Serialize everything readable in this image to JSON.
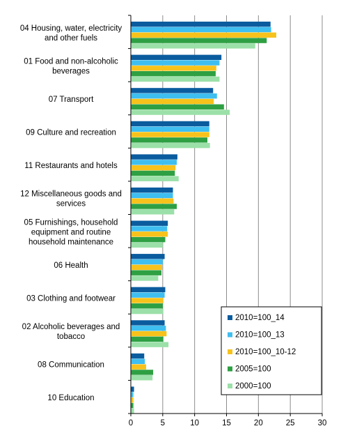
{
  "chart_data": {
    "type": "bar",
    "orientation": "horizontal",
    "categories": [
      "04 Housing, water, electricity and other fuels",
      "01 Food and non-alcoholic beverages",
      "07 Transport",
      "09 Culture and recreation",
      "11 Restaurants and hotels",
      "12 Miscellaneous goods and services",
      "05 Furnishings, household equipment and routine household maintenance",
      "06 Health",
      "03 Clothing and footwear",
      "02 Alcoholic beverages and tobacco",
      "08 Communication",
      "10 Education"
    ],
    "category_lines": [
      [
        "04 Housing, water, electricity",
        "and other fuels"
      ],
      [
        "01 Food and non-alcoholic",
        "beverages"
      ],
      [
        "07 Transport"
      ],
      [
        "09 Culture and recreation"
      ],
      [
        "11 Restaurants and hotels"
      ],
      [
        "12 Miscellaneous goods and",
        "services"
      ],
      [
        "05  Furnishings, household",
        "equipment and routine",
        "household maintenance"
      ],
      [
        "06 Health"
      ],
      [
        "03 Clothing and footwear"
      ],
      [
        "02 Alcoholic beverages and",
        "tobacco"
      ],
      [
        "08 Communication"
      ],
      [
        "10 Education"
      ]
    ],
    "series": [
      {
        "name": "2010=100_14",
        "color": "#0a5c9e",
        "values": [
          21.9,
          14.2,
          12.9,
          12.3,
          7.3,
          6.6,
          5.8,
          5.3,
          5.4,
          5.3,
          2.1,
          0.5
        ]
      },
      {
        "name": "2010=100_13",
        "color": "#3fbef0",
        "values": [
          22.0,
          13.9,
          13.5,
          12.3,
          7.2,
          6.6,
          5.7,
          5.0,
          5.3,
          5.5,
          2.2,
          0.4
        ]
      },
      {
        "name": "2010=100_10-12",
        "color": "#f7c21b",
        "values": [
          22.8,
          13.4,
          13.0,
          12.3,
          7.0,
          6.7,
          5.8,
          4.9,
          5.1,
          5.6,
          2.4,
          0.4
        ]
      },
      {
        "name": "2005=100",
        "color": "#2ea043",
        "values": [
          21.3,
          13.3,
          14.6,
          12.0,
          6.9,
          7.2,
          5.4,
          4.8,
          5.0,
          5.1,
          3.5,
          0.4
        ]
      },
      {
        "name": "2000=100",
        "color": "#9be0a8",
        "values": [
          19.5,
          13.9,
          15.5,
          12.4,
          7.5,
          6.8,
          5.0,
          4.3,
          5.1,
          5.9,
          3.4,
          0.5
        ]
      }
    ],
    "xlim": [
      0,
      30
    ],
    "xticks": [
      0,
      5,
      10,
      15,
      20,
      25,
      30
    ],
    "grid": "vertical",
    "legend": "bottom-right"
  }
}
